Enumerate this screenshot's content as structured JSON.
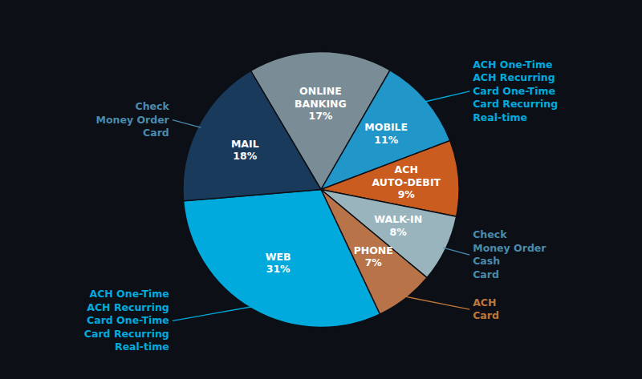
{
  "chart_data": {
    "type": "pie",
    "categories": [
      "ONLINE\nBANKING",
      "MOBILE",
      "ACH\nAUTO-DEBIT",
      "WALK-IN",
      "PHONE",
      "WEB",
      "MAIL"
    ],
    "values": [
      17,
      11,
      9,
      8,
      7,
      31,
      18
    ],
    "value_labels": [
      "17%",
      "11%",
      "9%",
      "8%",
      "7%",
      "31%",
      "18%"
    ],
    "colors": [
      "#7a8c96",
      "#2196c8",
      "#c95c1e",
      "#9ab4be",
      "#b87448",
      "#00aadd",
      "#1a3a5c"
    ],
    "data_labels": true,
    "annotations": [
      {
        "category": "MOBILE",
        "text": "ACH One-Time\nACH Recurring\nCard One-Time\nCard Recurring\nReal-time",
        "color": "#00aadd"
      },
      {
        "category": "WALK-IN",
        "text": "Check\nMoney Order\nCash\nCard",
        "color": "#4a8aac"
      },
      {
        "category": "PHONE",
        "text": "ACH\nCard",
        "color": "#c0763a"
      },
      {
        "category": "MAIL",
        "text": "Check\nMoney Order\nCard",
        "color": "#4a8aac"
      },
      {
        "category": "WEB",
        "text": "ACH One-Time\nACH Recurring\nCard One-Time\nCard Recurring\nReal-time",
        "color": "#00aadd"
      }
    ]
  }
}
